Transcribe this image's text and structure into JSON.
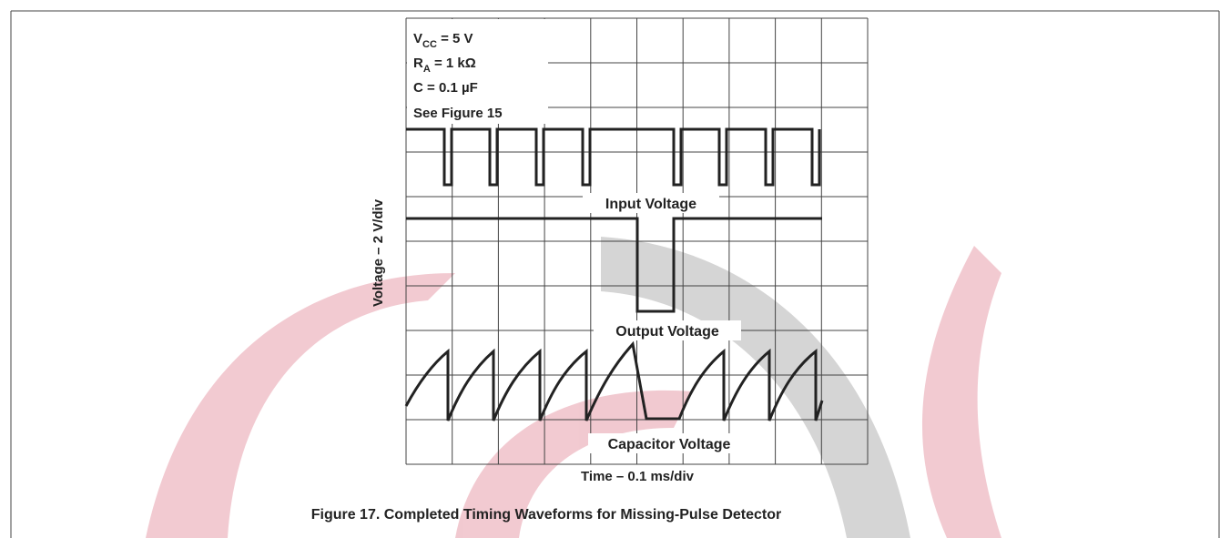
{
  "figure": {
    "conditions": [
      {
        "symbol": "V",
        "subscript": "CC",
        "value": " = 5 V"
      },
      {
        "symbol": "R",
        "subscript": "A",
        "value": " = 1 kΩ"
      },
      {
        "symbol": "C",
        "value": " = 0.1 µF"
      }
    ],
    "note": "See Figure 15",
    "traces": [
      "Input Voltage",
      "Output Voltage",
      "Capacitor Voltage"
    ],
    "y_label": "Voltage – 2 V/div",
    "x_label": "Time – 0.1 ms/div",
    "caption": "Figure 17. Completed Timing Waveforms for Missing-Pulse Detector"
  }
}
